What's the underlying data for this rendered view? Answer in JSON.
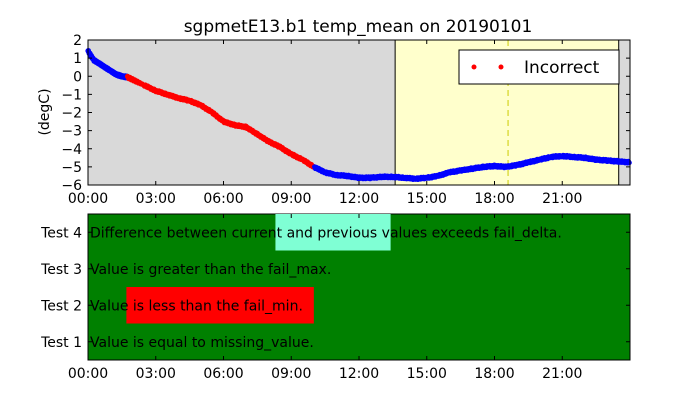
{
  "chart_data": [
    {
      "type": "scatter",
      "title": "sgpmetE13.b1 temp_mean on 20190101",
      "xlabel": "",
      "ylabel": "(degC)",
      "xlim": [
        0,
        24
      ],
      "ylim": [
        -6,
        2
      ],
      "x_tick_labels": [
        "00:00",
        "03:00",
        "06:00",
        "09:00",
        "12:00",
        "15:00",
        "18:00",
        "21:00"
      ],
      "y_tick_labels": [
        "2",
        "1",
        "0",
        "−1",
        "−2",
        "−3",
        "−4",
        "−5",
        "−6"
      ],
      "legend": {
        "entries": [
          "Incorrect"
        ],
        "position": "top-right"
      },
      "colors": {
        "data": "#0000ff",
        "incorrect": "#ff0000",
        "plot_bg": "#d9d9d9",
        "highlight": "#ffffcc",
        "marker_line": "#cccc00"
      },
      "shaded_region_hours": [
        13.6,
        23.5
      ],
      "vertical_line_hour": 18.6,
      "series": [
        {
          "name": "temp_mean",
          "x": [
            0.0,
            0.25,
            0.5,
            0.75,
            1.0,
            1.25,
            1.5,
            1.75,
            2.5,
            3.0,
            3.5,
            4.0,
            4.5,
            5.0,
            5.5,
            6.0,
            6.5,
            7.0,
            7.5,
            8.0,
            8.5,
            9.0,
            9.5,
            10.0,
            10.5,
            11.0,
            11.5,
            12.0,
            12.5,
            13.0,
            13.5,
            14.0,
            14.5,
            15.0,
            15.5,
            16.0,
            16.5,
            17.0,
            17.5,
            18.0,
            18.5,
            19.0,
            19.5,
            20.0,
            20.5,
            21.0,
            21.5,
            22.0,
            22.5,
            23.0,
            23.5,
            24.0
          ],
          "y": [
            1.4,
            0.9,
            0.7,
            0.5,
            0.3,
            0.1,
            0.0,
            -0.05,
            -0.5,
            -0.8,
            -1.0,
            -1.2,
            -1.35,
            -1.6,
            -2.0,
            -2.5,
            -2.7,
            -2.8,
            -3.2,
            -3.6,
            -3.9,
            -4.3,
            -4.6,
            -5.0,
            -5.3,
            -5.45,
            -5.5,
            -5.6,
            -5.6,
            -5.55,
            -5.55,
            -5.6,
            -5.65,
            -5.6,
            -5.5,
            -5.3,
            -5.2,
            -5.1,
            -5.0,
            -4.95,
            -5.0,
            -4.9,
            -4.75,
            -4.6,
            -4.45,
            -4.4,
            -4.45,
            -4.5,
            -4.6,
            -4.65,
            -4.7,
            -4.75
          ]
        }
      ],
      "incorrect_range_hours": [
        1.75,
        10.0
      ]
    },
    {
      "type": "table",
      "x_tick_labels": [
        "00:00",
        "03:00",
        "06:00",
        "09:00",
        "12:00",
        "15:00",
        "18:00",
        "21:00"
      ],
      "xlim": [
        0,
        24
      ],
      "rows": [
        {
          "label": "Test 4",
          "description": "Difference between current and previous values exceeds fail_delta.",
          "flag_start": 8.3,
          "flag_end": 13.4,
          "flag_color": "#7fffd4"
        },
        {
          "label": "Test 3",
          "description": "Value is greater than the fail_max.",
          "flag_start": null,
          "flag_end": null,
          "flag_color": ""
        },
        {
          "label": "Test 2",
          "description": "Value is less than the fail_min.",
          "flag_start": 1.7,
          "flag_end": 10.0,
          "flag_color": "#ff0000"
        },
        {
          "label": "Test 1",
          "description": "Value is equal to missing_value.",
          "flag_start": null,
          "flag_end": null,
          "flag_color": ""
        }
      ],
      "colors": {
        "background": "#008000"
      }
    }
  ]
}
